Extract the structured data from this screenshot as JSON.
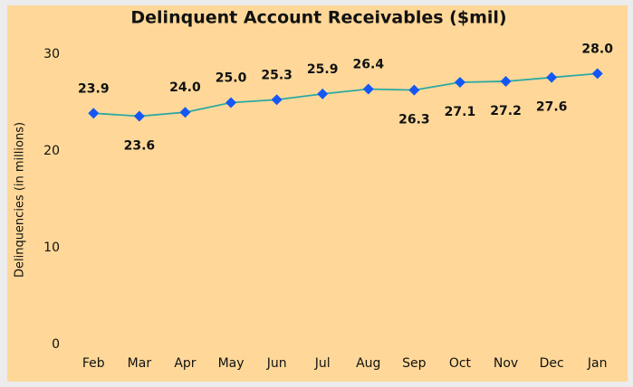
{
  "chart_data": {
    "type": "line",
    "title": "Delinquent Account Receivables ($mil)",
    "y_label": "Delinquencies (in millions)",
    "categories": [
      "Feb",
      "Mar",
      "Apr",
      "May",
      "Jun",
      "Jul",
      "Aug",
      "Sep",
      "Oct",
      "Nov",
      "Dec",
      "Jan"
    ],
    "values": [
      23.9,
      23.6,
      24,
      25,
      25.3,
      25.9,
      26.4,
      26.3,
      27.1,
      27.2,
      27.6,
      28
    ],
    "value_labels": [
      "23.9",
      "23.6",
      "24.0",
      "25.0",
      "25.3",
      "25.9",
      "26.4",
      "26.3",
      "27.1",
      "27.2",
      "27.6",
      "28.0"
    ],
    "line_color": "#2aa9a2",
    "marker_color": "#1457f5",
    "ylim": [
      0,
      30
    ],
    "yticks": [
      0,
      10,
      20,
      30
    ],
    "grid": false
  }
}
